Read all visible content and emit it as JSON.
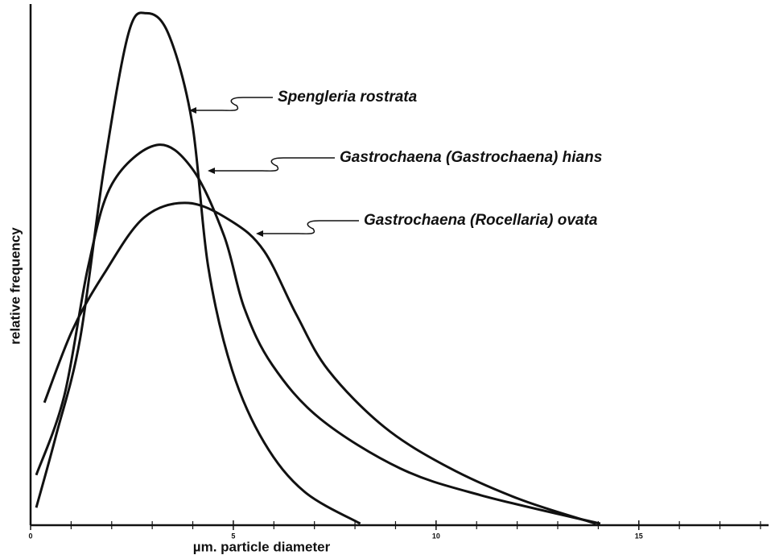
{
  "chart_data": {
    "type": "line",
    "x_label": "µm.   particle   diameter",
    "y_label": "relative   frequency",
    "xlim": [
      0,
      18.2
    ],
    "ylim": [
      0,
      100
    ],
    "xticks": [
      0,
      5,
      10,
      15
    ],
    "xminorticks": [
      1,
      2,
      3,
      4,
      6,
      7,
      8,
      9,
      11,
      12,
      13,
      14,
      16,
      17,
      18
    ],
    "series": [
      {
        "name": "Spengleria rostrata",
        "color": "#111111",
        "x": [
          0.14,
          0.63,
          1.22,
          1.81,
          2.41,
          2.86,
          3.4,
          3.98,
          4.38,
          4.97,
          5.76,
          6.75,
          8.13
        ],
        "values": [
          3.4,
          17.4,
          36,
          69,
          95,
          99,
          95,
          78,
          50,
          30,
          16,
          6.5,
          0.3
        ]
      },
      {
        "name": "Gastrochaena (Gastrochaena) hians",
        "color": "#111111",
        "x": [
          0.14,
          0.83,
          1.42,
          2.01,
          3.1,
          3.98,
          4.77,
          5.27,
          5.96,
          7.14,
          9.11,
          11.1,
          14.05
        ],
        "values": [
          9.7,
          25,
          50,
          66,
          73.5,
          69,
          56,
          42,
          31,
          20.6,
          11,
          5.8,
          0.3
        ]
      },
      {
        "name": "Gastrochaena (Rocellaria) ovata",
        "color": "#111111",
        "x": [
          0.34,
          1.03,
          1.81,
          2.8,
          3.89,
          4.97,
          5.76,
          6.55,
          7.34,
          8.72,
          10.3,
          12.07,
          13.94
        ],
        "values": [
          23.7,
          37.7,
          48.6,
          59.5,
          62.3,
          58.7,
          53,
          40.8,
          30,
          19,
          11.2,
          5,
          0.3
        ]
      }
    ]
  }
}
